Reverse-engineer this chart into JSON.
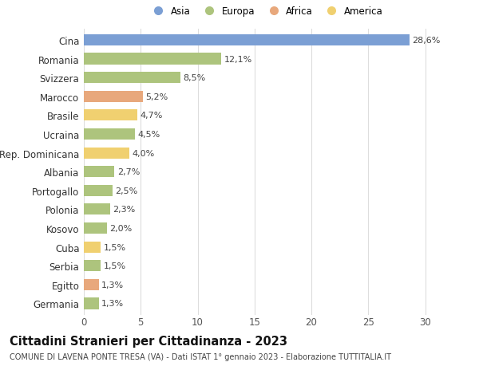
{
  "countries": [
    "Cina",
    "Romania",
    "Svizzera",
    "Marocco",
    "Brasile",
    "Ucraina",
    "Rep. Dominicana",
    "Albania",
    "Portogallo",
    "Polonia",
    "Kosovo",
    "Cuba",
    "Serbia",
    "Egitto",
    "Germania"
  ],
  "values": [
    28.6,
    12.1,
    8.5,
    5.2,
    4.7,
    4.5,
    4.0,
    2.7,
    2.5,
    2.3,
    2.0,
    1.5,
    1.5,
    1.3,
    1.3
  ],
  "labels": [
    "28,6%",
    "12,1%",
    "8,5%",
    "5,2%",
    "4,7%",
    "4,5%",
    "4,0%",
    "2,7%",
    "2,5%",
    "2,3%",
    "2,0%",
    "1,5%",
    "1,5%",
    "1,3%",
    "1,3%"
  ],
  "continents": [
    "Asia",
    "Europa",
    "Europa",
    "Africa",
    "America",
    "Europa",
    "America",
    "Europa",
    "Europa",
    "Europa",
    "Europa",
    "America",
    "Europa",
    "Africa",
    "Europa"
  ],
  "colors": {
    "Asia": "#7b9fd4",
    "Europa": "#adc47d",
    "Africa": "#e8a87c",
    "America": "#f0d070"
  },
  "xlim": [
    0,
    32
  ],
  "xticks": [
    0,
    5,
    10,
    15,
    20,
    25,
    30
  ],
  "title": "Cittadini Stranieri per Cittadinanza - 2023",
  "subtitle": "COMUNE DI LAVENA PONTE TRESA (VA) - Dati ISTAT 1° gennaio 2023 - Elaborazione TUTTITALIA.IT",
  "background_color": "#ffffff",
  "grid_color": "#dddddd",
  "bar_height": 0.6,
  "label_fontsize": 8,
  "ytick_fontsize": 8.5,
  "xtick_fontsize": 8.5,
  "title_fontsize": 10.5,
  "subtitle_fontsize": 7,
  "legend_fontsize": 8.5,
  "legend_order": [
    "Asia",
    "Europa",
    "Africa",
    "America"
  ]
}
